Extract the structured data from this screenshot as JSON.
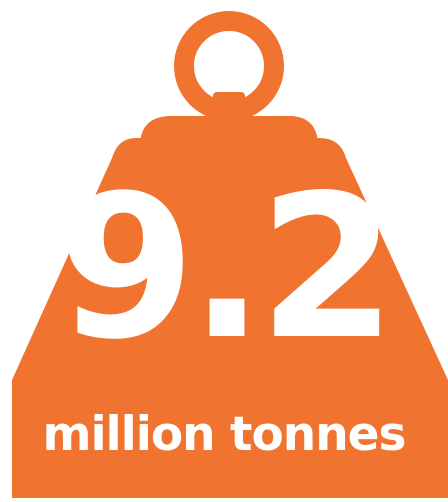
{
  "infographic": {
    "value": "9.2",
    "unit": "million tonnes",
    "icon": "weight-icon",
    "colors": {
      "weight_fill": "#f07330",
      "text": "#ffffff",
      "background": "#ffffff"
    }
  }
}
